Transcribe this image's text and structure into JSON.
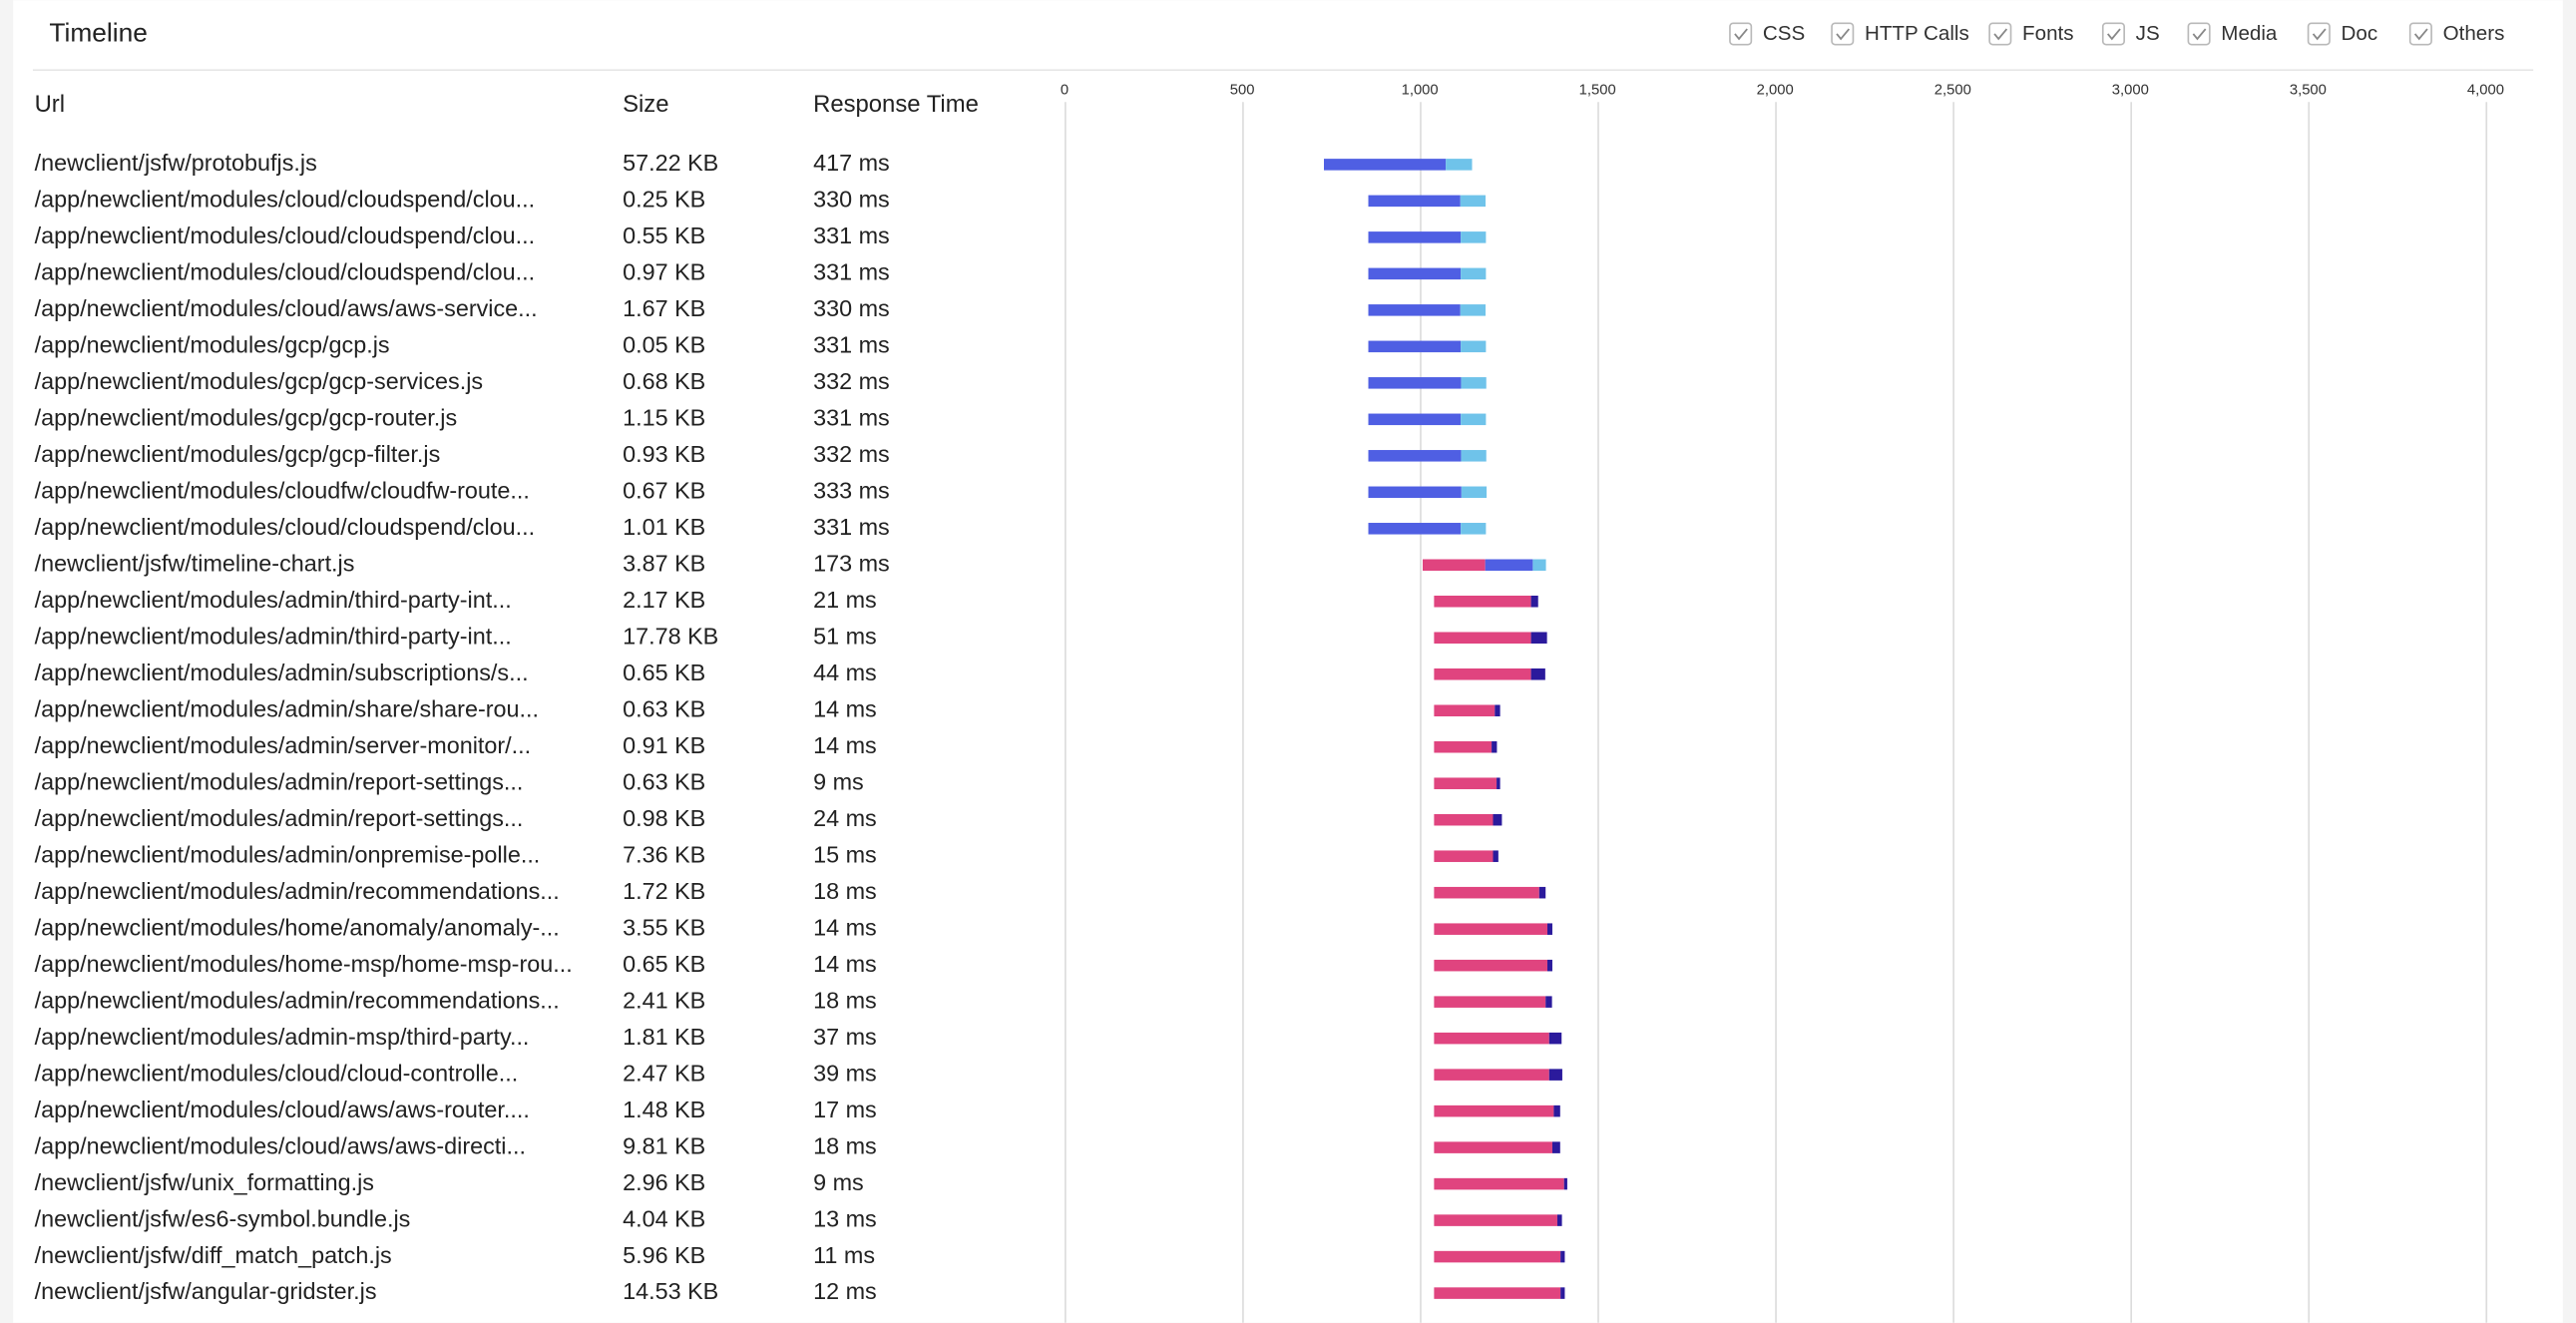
{
  "header": {
    "title": "Timeline",
    "filters": [
      "CSS",
      "HTTP Calls",
      "Fonts",
      "JS",
      "Media",
      "Doc",
      "Others"
    ]
  },
  "table": {
    "columns": [
      "Url",
      "Size",
      "Response Time"
    ],
    "rows": [
      [
        "/newclient/jsfw/protobufjs.js",
        "57.22 KB",
        "417 ms"
      ],
      [
        "/app/newclient/modules/cloud/cloudspend/clou...",
        "0.25 KB",
        "330 ms"
      ],
      [
        "/app/newclient/modules/cloud/cloudspend/clou...",
        "0.55 KB",
        "331 ms"
      ],
      [
        "/app/newclient/modules/cloud/cloudspend/clou...",
        "0.97 KB",
        "331 ms"
      ],
      [
        "/app/newclient/modules/cloud/aws/aws-service...",
        "1.67 KB",
        "330 ms"
      ],
      [
        "/app/newclient/modules/gcp/gcp.js",
        "0.05 KB",
        "331 ms"
      ],
      [
        "/app/newclient/modules/gcp/gcp-services.js",
        "0.68 KB",
        "332 ms"
      ],
      [
        "/app/newclient/modules/gcp/gcp-router.js",
        "1.15 KB",
        "331 ms"
      ],
      [
        "/app/newclient/modules/gcp/gcp-filter.js",
        "0.93 KB",
        "332 ms"
      ],
      [
        "/app/newclient/modules/cloudfw/cloudfw-route...",
        "0.67 KB",
        "333 ms"
      ],
      [
        "/app/newclient/modules/cloud/cloudspend/clou...",
        "1.01 KB",
        "331 ms"
      ],
      [
        "/newclient/jsfw/timeline-chart.js",
        "3.87 KB",
        "173 ms"
      ],
      [
        "/app/newclient/modules/admin/third-party-int...",
        "2.17 KB",
        "21 ms"
      ],
      [
        "/app/newclient/modules/admin/third-party-int...",
        "17.78 KB",
        "51 ms"
      ],
      [
        "/app/newclient/modules/admin/subscriptions/s...",
        "0.65 KB",
        "44 ms"
      ],
      [
        "/app/newclient/modules/admin/share/share-rou...",
        "0.63 KB",
        "14 ms"
      ],
      [
        "/app/newclient/modules/admin/server-monitor/...",
        "0.91 KB",
        "14 ms"
      ],
      [
        "/app/newclient/modules/admin/report-settings...",
        "0.63 KB",
        "9 ms"
      ],
      [
        "/app/newclient/modules/admin/report-settings...",
        "0.98 KB",
        "24 ms"
      ],
      [
        "/app/newclient/modules/admin/onpremise-polle...",
        "7.36 KB",
        "15 ms"
      ],
      [
        "/app/newclient/modules/admin/recommendations...",
        "1.72 KB",
        "18 ms"
      ],
      [
        "/app/newclient/modules/home/anomaly/anomaly-...",
        "3.55 KB",
        "14 ms"
      ],
      [
        "/app/newclient/modules/home-msp/home-msp-rou...",
        "0.65 KB",
        "14 ms"
      ],
      [
        "/app/newclient/modules/admin/recommendations...",
        "2.41 KB",
        "18 ms"
      ],
      [
        "/app/newclient/modules/admin-msp/third-party...",
        "1.81 KB",
        "37 ms"
      ],
      [
        "/app/newclient/modules/cloud/cloud-controlle...",
        "2.47 KB",
        "39 ms"
      ],
      [
        "/app/newclient/modules/cloud/aws/aws-router....",
        "1.48 KB",
        "17 ms"
      ],
      [
        "/app/newclient/modules/cloud/aws/aws-directi...",
        "9.81 KB",
        "18 ms"
      ],
      [
        "/newclient/jsfw/unix_formatting.js",
        "2.96 KB",
        "9 ms"
      ],
      [
        "/newclient/jsfw/es6-symbol.bundle.js",
        "4.04 KB",
        "13 ms"
      ],
      [
        "/newclient/jsfw/diff_match_patch.js",
        "5.96 KB",
        "11 ms"
      ],
      [
        "/newclient/jsfw/angular-gridster.js",
        "14.53 KB",
        "12 ms"
      ]
    ]
  },
  "chart_data": {
    "type": "waterfall",
    "xlim": [
      0,
      4000
    ],
    "xticks": [
      0,
      500,
      {
        "value": 1000,
        "label": "1,000"
      },
      {
        "value": 1500,
        "label": "1,500"
      },
      {
        "value": 2000,
        "label": "2,000"
      },
      {
        "value": 2500,
        "label": "2,500"
      },
      {
        "value": 3000,
        "label": "3,000"
      },
      {
        "value": 3500,
        "label": "3,500"
      },
      {
        "value": 4000,
        "label": "4,000"
      }
    ],
    "grid": true,
    "bars": [
      {
        "start": 730,
        "parts": [
          {
            "value": 343,
            "color": "#4f5fe3"
          },
          {
            "value": 74,
            "color": "#6fc3ea"
          }
        ]
      },
      {
        "start": 855,
        "parts": [
          {
            "value": 259,
            "color": "#4f5fe3"
          },
          {
            "value": 71,
            "color": "#6fc3ea"
          }
        ]
      },
      {
        "start": 855,
        "parts": [
          {
            "value": 260,
            "color": "#4f5fe3"
          },
          {
            "value": 71,
            "color": "#6fc3ea"
          }
        ]
      },
      {
        "start": 855,
        "parts": [
          {
            "value": 260,
            "color": "#4f5fe3"
          },
          {
            "value": 71,
            "color": "#6fc3ea"
          }
        ]
      },
      {
        "start": 855,
        "parts": [
          {
            "value": 259,
            "color": "#4f5fe3"
          },
          {
            "value": 71,
            "color": "#6fc3ea"
          }
        ]
      },
      {
        "start": 855,
        "parts": [
          {
            "value": 260,
            "color": "#4f5fe3"
          },
          {
            "value": 71,
            "color": "#6fc3ea"
          }
        ]
      },
      {
        "start": 855,
        "parts": [
          {
            "value": 261,
            "color": "#4f5fe3"
          },
          {
            "value": 71,
            "color": "#6fc3ea"
          }
        ]
      },
      {
        "start": 855,
        "parts": [
          {
            "value": 260,
            "color": "#4f5fe3"
          },
          {
            "value": 71,
            "color": "#6fc3ea"
          }
        ]
      },
      {
        "start": 855,
        "parts": [
          {
            "value": 261,
            "color": "#4f5fe3"
          },
          {
            "value": 71,
            "color": "#6fc3ea"
          }
        ]
      },
      {
        "start": 855,
        "parts": [
          {
            "value": 262,
            "color": "#4f5fe3"
          },
          {
            "value": 71,
            "color": "#6fc3ea"
          }
        ]
      },
      {
        "start": 855,
        "parts": [
          {
            "value": 260,
            "color": "#4f5fe3"
          },
          {
            "value": 71,
            "color": "#6fc3ea"
          }
        ]
      },
      {
        "start": 1008,
        "parts": [
          {
            "value": 176,
            "color": "#e0447f"
          },
          {
            "value": 134,
            "color": "#4f5fe3"
          },
          {
            "value": 37,
            "color": "#6fc3ea"
          }
        ]
      },
      {
        "start": 1040,
        "parts": [
          {
            "value": 273,
            "color": "#e0447f"
          },
          {
            "value": 20,
            "color": "#2b1a9c"
          }
        ]
      },
      {
        "start": 1040,
        "parts": [
          {
            "value": 273,
            "color": "#e0447f"
          },
          {
            "value": 45,
            "color": "#2b1a9c"
          }
        ]
      },
      {
        "start": 1040,
        "parts": [
          {
            "value": 273,
            "color": "#e0447f"
          },
          {
            "value": 40,
            "color": "#2b1a9c"
          }
        ]
      },
      {
        "start": 1040,
        "parts": [
          {
            "value": 171,
            "color": "#e0447f"
          },
          {
            "value": 15,
            "color": "#2b1a9c"
          }
        ]
      },
      {
        "start": 1040,
        "parts": [
          {
            "value": 162,
            "color": "#e0447f"
          },
          {
            "value": 15,
            "color": "#2b1a9c"
          }
        ]
      },
      {
        "start": 1040,
        "parts": [
          {
            "value": 176,
            "color": "#e0447f"
          },
          {
            "value": 10,
            "color": "#2b1a9c"
          }
        ]
      },
      {
        "start": 1040,
        "parts": [
          {
            "value": 166,
            "color": "#e0447f"
          },
          {
            "value": 25,
            "color": "#2b1a9c"
          }
        ]
      },
      {
        "start": 1040,
        "parts": [
          {
            "value": 166,
            "color": "#e0447f"
          },
          {
            "value": 15,
            "color": "#2b1a9c"
          }
        ]
      },
      {
        "start": 1040,
        "parts": [
          {
            "value": 296,
            "color": "#e0447f"
          },
          {
            "value": 18,
            "color": "#2b1a9c"
          }
        ]
      },
      {
        "start": 1040,
        "parts": [
          {
            "value": 319,
            "color": "#e0447f"
          },
          {
            "value": 14,
            "color": "#2b1a9c"
          }
        ]
      },
      {
        "start": 1040,
        "parts": [
          {
            "value": 319,
            "color": "#e0447f"
          },
          {
            "value": 14,
            "color": "#2b1a9c"
          }
        ]
      },
      {
        "start": 1040,
        "parts": [
          {
            "value": 314,
            "color": "#e0447f"
          },
          {
            "value": 18,
            "color": "#2b1a9c"
          }
        ]
      },
      {
        "start": 1040,
        "parts": [
          {
            "value": 324,
            "color": "#e0447f"
          },
          {
            "value": 35,
            "color": "#2b1a9c"
          }
        ]
      },
      {
        "start": 1040,
        "parts": [
          {
            "value": 324,
            "color": "#e0447f"
          },
          {
            "value": 37,
            "color": "#2b1a9c"
          }
        ]
      },
      {
        "start": 1040,
        "parts": [
          {
            "value": 337,
            "color": "#e0447f"
          },
          {
            "value": 18,
            "color": "#2b1a9c"
          }
        ]
      },
      {
        "start": 1040,
        "parts": [
          {
            "value": 333,
            "color": "#e0447f"
          },
          {
            "value": 22,
            "color": "#2b1a9c"
          }
        ]
      },
      {
        "start": 1040,
        "parts": [
          {
            "value": 366,
            "color": "#e0447f"
          },
          {
            "value": 9,
            "color": "#2b1a9c"
          }
        ]
      },
      {
        "start": 1040,
        "parts": [
          {
            "value": 347,
            "color": "#e0447f"
          },
          {
            "value": 13,
            "color": "#2b1a9c"
          }
        ]
      },
      {
        "start": 1040,
        "parts": [
          {
            "value": 356,
            "color": "#e0447f"
          },
          {
            "value": 12,
            "color": "#2b1a9c"
          }
        ]
      },
      {
        "start": 1040,
        "parts": [
          {
            "value": 356,
            "color": "#e0447f"
          },
          {
            "value": 12,
            "color": "#2b1a9c"
          }
        ]
      }
    ]
  }
}
